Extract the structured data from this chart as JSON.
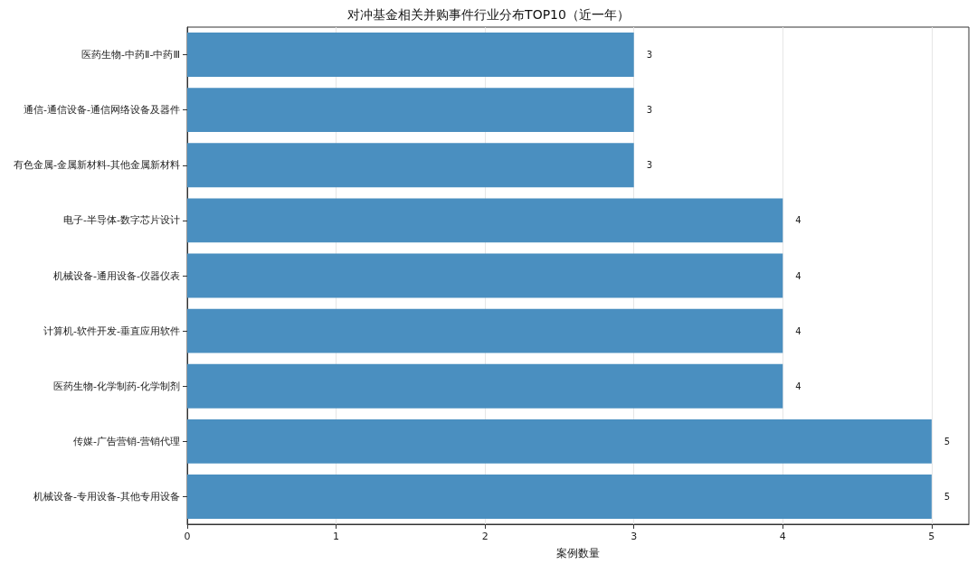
{
  "chart_data": {
    "type": "bar",
    "orientation": "horizontal",
    "title": "对冲基金相关并购事件行业分布TOP10（近一年）",
    "xlabel": "案例数量",
    "categories": [
      "医药生物-中药Ⅱ-中药Ⅲ",
      "通信-通信设备-通信网络设备及器件",
      "有色金属-金属新材料-其他金属新材料",
      "电子-半导体-数字芯片设计",
      "机械设备-通用设备-仪器仪表",
      "计算机-软件开发-垂直应用软件",
      "医药生物-化学制药-化学制剂",
      "传媒-广告营销-营销代理",
      "机械设备-专用设备-其他专用设备"
    ],
    "values": [
      3,
      3,
      3,
      4,
      4,
      4,
      4,
      5,
      5
    ],
    "color": "#4a8fc0",
    "xlim": [
      0,
      5.25
    ],
    "xticks": [
      0,
      1,
      2,
      3,
      4,
      5
    ],
    "grid": "x",
    "data_labels": true
  }
}
